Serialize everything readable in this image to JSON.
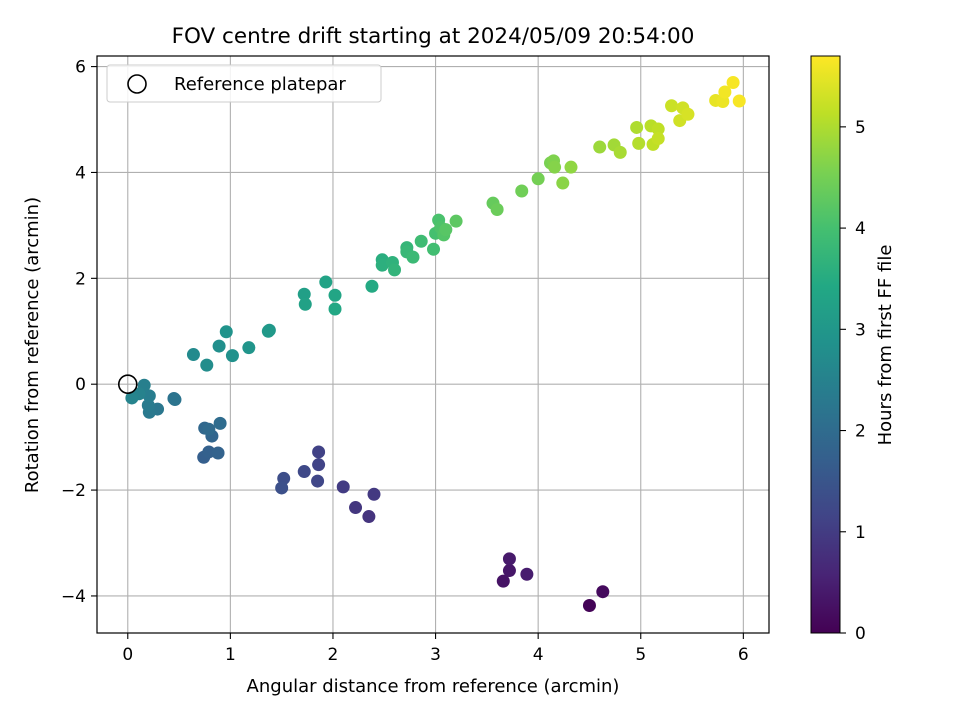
{
  "chart_data": {
    "type": "scatter",
    "title": "FOV centre drift starting at 2024/05/09 20:54:00",
    "xlabel": "Angular distance from reference (arcmin)",
    "ylabel": "Rotation from reference (arcmin)",
    "xlim": [
      -0.3,
      6.25
    ],
    "ylim": [
      -4.7,
      6.2
    ],
    "xticks": [
      "0",
      "1",
      "2",
      "3",
      "4",
      "5",
      "6"
    ],
    "yticks": [
      "−4",
      "−2",
      "0",
      "2",
      "4",
      "6"
    ],
    "grid": true,
    "legend": {
      "placement": "top-left",
      "entries": [
        "Reference platepar"
      ]
    },
    "reference_point": {
      "x": 0,
      "y": 0
    },
    "colorbar": {
      "label": "Hours from first FF file",
      "range": [
        0,
        5.7
      ],
      "ticks": [
        "0",
        "1",
        "2",
        "3",
        "4",
        "5"
      ],
      "colormap": "viridis"
    },
    "series": [
      {
        "points": [
          [
            4.5,
            -4.18,
            0.05
          ],
          [
            4.63,
            -3.92,
            0.15
          ],
          [
            3.66,
            -3.72,
            0.3
          ],
          [
            3.72,
            -3.52,
            0.35
          ],
          [
            3.72,
            -3.3,
            0.4
          ],
          [
            3.89,
            -3.59,
            0.45
          ],
          [
            2.35,
            -2.5,
            0.85
          ],
          [
            2.22,
            -2.33,
            0.9
          ],
          [
            2.4,
            -2.08,
            0.95
          ],
          [
            2.1,
            -1.94,
            1.0
          ],
          [
            1.86,
            -1.28,
            1.1
          ],
          [
            1.86,
            -1.52,
            1.15
          ],
          [
            1.85,
            -1.83,
            1.2
          ],
          [
            1.72,
            -1.65,
            1.25
          ],
          [
            1.52,
            -1.78,
            1.35
          ],
          [
            1.5,
            -1.96,
            1.4
          ],
          [
            0.74,
            -1.38,
            1.7
          ],
          [
            0.79,
            -1.28,
            1.75
          ],
          [
            0.88,
            -1.3,
            1.8
          ],
          [
            0.82,
            -0.98,
            1.85
          ],
          [
            0.75,
            -0.83,
            1.9
          ],
          [
            0.79,
            -0.85,
            1.95
          ],
          [
            0.9,
            -0.74,
            2.0
          ],
          [
            0.45,
            -0.27,
            2.15
          ],
          [
            0.46,
            -0.29,
            2.2
          ],
          [
            0.29,
            -0.47,
            2.25
          ],
          [
            0.21,
            -0.53,
            2.3
          ],
          [
            0.2,
            -0.4,
            2.35
          ],
          [
            0.21,
            -0.22,
            2.4
          ],
          [
            0.16,
            -0.02,
            2.45
          ],
          [
            0.11,
            -0.18,
            2.5
          ],
          [
            0.04,
            -0.26,
            2.55
          ],
          [
            0.64,
            0.56,
            2.7
          ],
          [
            0.77,
            0.36,
            2.75
          ],
          [
            0.89,
            0.72,
            2.8
          ],
          [
            1.02,
            0.54,
            2.85
          ],
          [
            0.96,
            0.99,
            2.9
          ],
          [
            1.18,
            0.69,
            2.95
          ],
          [
            1.38,
            1.02,
            3.0
          ],
          [
            1.37,
            1.0,
            3.05
          ],
          [
            1.72,
            1.7,
            3.2
          ],
          [
            1.73,
            1.51,
            3.25
          ],
          [
            1.93,
            1.93,
            3.3
          ],
          [
            2.02,
            1.68,
            3.35
          ],
          [
            2.02,
            1.42,
            3.4
          ],
          [
            2.38,
            1.85,
            3.45
          ],
          [
            2.48,
            2.35,
            3.55
          ],
          [
            2.48,
            2.25,
            3.6
          ],
          [
            2.58,
            2.3,
            3.65
          ],
          [
            2.6,
            2.16,
            3.7
          ],
          [
            2.72,
            2.58,
            3.75
          ],
          [
            2.72,
            2.5,
            3.8
          ],
          [
            2.78,
            2.4,
            3.85
          ],
          [
            2.86,
            2.7,
            3.9
          ],
          [
            2.98,
            2.55,
            3.95
          ],
          [
            3.0,
            2.85,
            4.0
          ],
          [
            3.03,
            3.1,
            4.05
          ],
          [
            3.05,
            2.96,
            4.1
          ],
          [
            3.08,
            2.82,
            4.15
          ],
          [
            3.1,
            2.92,
            4.2
          ],
          [
            3.2,
            3.08,
            4.25
          ],
          [
            3.56,
            3.42,
            4.35
          ],
          [
            3.6,
            3.3,
            4.4
          ],
          [
            3.84,
            3.65,
            4.45
          ],
          [
            4.0,
            3.88,
            4.5
          ],
          [
            4.12,
            4.18,
            4.55
          ],
          [
            4.15,
            4.22,
            4.6
          ],
          [
            4.16,
            4.1,
            4.65
          ],
          [
            4.24,
            3.8,
            4.7
          ],
          [
            4.32,
            4.1,
            4.75
          ],
          [
            4.6,
            4.48,
            4.85
          ],
          [
            4.74,
            4.52,
            4.9
          ],
          [
            4.8,
            4.38,
            4.95
          ],
          [
            4.96,
            4.85,
            5.0
          ],
          [
            4.98,
            4.55,
            5.05
          ],
          [
            5.1,
            4.88,
            5.1
          ],
          [
            5.12,
            4.53,
            5.15
          ],
          [
            5.17,
            4.82,
            5.15
          ],
          [
            5.17,
            4.64,
            5.2
          ],
          [
            5.3,
            5.26,
            5.25
          ],
          [
            5.38,
            4.98,
            5.3
          ],
          [
            5.41,
            5.22,
            5.3
          ],
          [
            5.46,
            5.1,
            5.35
          ],
          [
            5.73,
            5.36,
            5.5
          ],
          [
            5.8,
            5.34,
            5.55
          ],
          [
            5.82,
            5.52,
            5.6
          ],
          [
            5.9,
            5.7,
            5.65
          ],
          [
            5.96,
            5.35,
            5.65
          ]
        ]
      }
    ]
  }
}
